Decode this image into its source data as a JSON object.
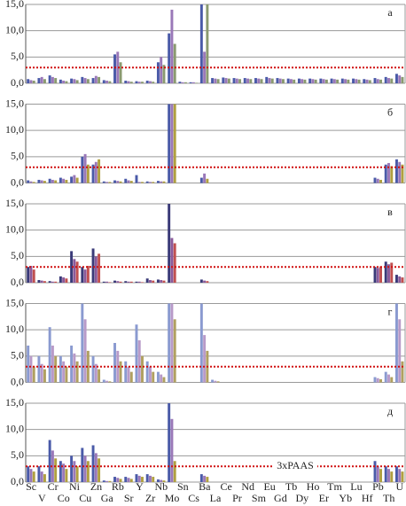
{
  "chart_data": [
    {
      "type": "bar",
      "panel_label": "а",
      "ylim": [
        0,
        15
      ],
      "yticks": [
        {
          "value": 0,
          "label": "0,0"
        },
        {
          "value": 5,
          "label": "5,0"
        },
        {
          "value": 10,
          "label": "10,0"
        },
        {
          "value": 15,
          "label": "15,0"
        }
      ],
      "threshold": 3,
      "threshold_color": "#d01010",
      "series": [
        {
          "color": "#4a5aa8",
          "values": [
            0.8,
            1.0,
            1.5,
            0.7,
            0.9,
            1.2,
            1.0,
            0.6,
            5.5,
            0.5,
            0.4,
            0.5,
            4.0,
            9.5,
            0.3,
            0.2,
            15.5,
            1.0,
            1.1,
            1.0,
            1.0,
            1.0,
            1.2,
            1.0,
            0.9,
            0.9,
            0.9,
            0.9,
            0.9,
            0.9,
            0.9,
            0.8,
            1.0,
            1.2,
            1.8
          ]
        },
        {
          "color": "#9a78b8",
          "values": [
            0.6,
            1.2,
            1.2,
            0.5,
            0.8,
            1.0,
            1.4,
            0.5,
            6.0,
            0.4,
            0.3,
            0.4,
            5.0,
            14.0,
            0.2,
            0.2,
            6.0,
            0.9,
            1.0,
            0.9,
            0.9,
            0.9,
            1.0,
            0.9,
            0.8,
            0.8,
            0.8,
            0.8,
            0.8,
            0.8,
            0.8,
            0.7,
            0.8,
            1.0,
            1.5
          ]
        },
        {
          "color": "#8a9a70",
          "values": [
            0.5,
            0.8,
            1.0,
            0.4,
            0.6,
            0.8,
            1.2,
            0.4,
            4.0,
            0.3,
            0.3,
            0.3,
            3.5,
            7.5,
            0.2,
            0.1,
            15.5,
            0.8,
            0.9,
            0.8,
            0.8,
            0.8,
            0.9,
            0.8,
            0.7,
            0.7,
            0.7,
            0.7,
            0.7,
            0.7,
            0.7,
            0.6,
            0.7,
            0.9,
            1.2
          ]
        }
      ]
    },
    {
      "type": "bar",
      "panel_label": "б",
      "ylim": [
        0,
        15
      ],
      "yticks": [
        {
          "value": 0,
          "label": "0,0"
        },
        {
          "value": 5,
          "label": "5,0"
        },
        {
          "value": 10,
          "label": "10,0"
        },
        {
          "value": 15,
          "label": "15,0"
        }
      ],
      "threshold": 3,
      "threshold_color": "#d01010",
      "series": [
        {
          "color": "#4a5aa8",
          "values": [
            0.5,
            0.6,
            0.8,
            1.0,
            1.2,
            5.0,
            3.5,
            0.3,
            0.5,
            0.8,
            1.5,
            0.3,
            0.4,
            16,
            0,
            0,
            1.0,
            0,
            0,
            0,
            0,
            0,
            0,
            0,
            0,
            0,
            0,
            0,
            0,
            0,
            0,
            0,
            1.0,
            3.5,
            4.5
          ]
        },
        {
          "color": "#9a78b8",
          "values": [
            0.3,
            0.5,
            0.6,
            0.8,
            1.5,
            5.5,
            4.0,
            0.2,
            0.4,
            0.5,
            0.2,
            0.2,
            0.3,
            16,
            0,
            0,
            1.8,
            0,
            0,
            0,
            0,
            0,
            0,
            0,
            0,
            0,
            0,
            0,
            0,
            0,
            0,
            0,
            0.8,
            3.8,
            4.0
          ]
        },
        {
          "color": "#b0a040",
          "values": [
            0.2,
            0.4,
            0.5,
            0.6,
            1.0,
            3.5,
            4.5,
            0.2,
            0.3,
            0.4,
            0.2,
            0.2,
            0.3,
            16,
            0,
            0,
            0.8,
            0,
            0,
            0,
            0,
            0,
            0,
            0,
            0,
            0,
            0,
            0,
            0,
            0,
            0,
            0,
            0.6,
            3.2,
            3.5
          ]
        }
      ]
    },
    {
      "type": "bar",
      "panel_label": "в",
      "ylim": [
        0,
        15
      ],
      "yticks": [
        {
          "value": 0,
          "label": "0,0"
        },
        {
          "value": 5,
          "label": "5,0"
        },
        {
          "value": 10,
          "label": "10,0"
        },
        {
          "value": 15,
          "label": "15,0"
        }
      ],
      "threshold": 3,
      "threshold_color": "#d01010",
      "series": [
        {
          "color": "#3a3a78",
          "values": [
            3.0,
            0.5,
            0.3,
            1.2,
            6.0,
            3.0,
            6.5,
            0.2,
            0.4,
            0.3,
            0.2,
            0.8,
            0.6,
            16,
            0,
            0,
            0.6,
            0,
            0,
            0,
            0,
            0,
            0,
            0,
            0,
            0,
            0,
            0,
            0,
            0,
            0,
            0,
            3.0,
            4.0,
            1.5
          ]
        },
        {
          "color": "#8a5a9a",
          "values": [
            3.2,
            0.4,
            0.2,
            1.0,
            4.5,
            2.5,
            5.0,
            0.2,
            0.3,
            0.2,
            0.2,
            0.5,
            0.5,
            8.5,
            0,
            0,
            0.4,
            0,
            0,
            0,
            0,
            0,
            0,
            0,
            0,
            0,
            0,
            0,
            0,
            0,
            0,
            0,
            2.8,
            3.5,
            1.2
          ]
        },
        {
          "color": "#c05050",
          "values": [
            2.5,
            0.3,
            0.2,
            0.8,
            4.0,
            3.2,
            5.5,
            0.1,
            0.2,
            0.2,
            0.1,
            0.4,
            0.4,
            7.5,
            0,
            0,
            0.3,
            0,
            0,
            0,
            0,
            0,
            0,
            0,
            0,
            0,
            0,
            0,
            0,
            0,
            0,
            0,
            3.1,
            3.8,
            1.0
          ]
        }
      ]
    },
    {
      "type": "bar",
      "panel_label": "г",
      "ylim": [
        0,
        15
      ],
      "yticks": [
        {
          "value": 0,
          "label": "0,0"
        },
        {
          "value": 5,
          "label": "5,0"
        },
        {
          "value": 10,
          "label": "10,0"
        },
        {
          "value": 15,
          "label": "15,0"
        }
      ],
      "threshold": 3,
      "threshold_color": "#d01010",
      "series": [
        {
          "color": "#8a9ad0",
          "values": [
            7.0,
            5.0,
            10.5,
            5.0,
            7.0,
            15.5,
            5.0,
            0.5,
            7.5,
            4.0,
            11.0,
            4.0,
            2.0,
            16,
            0,
            0,
            15.0,
            0.5,
            0,
            0,
            0,
            0,
            0,
            0,
            0,
            0,
            0,
            0,
            0,
            0,
            0,
            0,
            1.0,
            2.0,
            15.0
          ]
        },
        {
          "color": "#b89ac8",
          "values": [
            5.0,
            3.5,
            7.0,
            4.0,
            5.5,
            12.0,
            3.5,
            0.3,
            6.0,
            3.0,
            8.0,
            3.0,
            1.5,
            16,
            0,
            0,
            9.0,
            0.3,
            0,
            0,
            0,
            0,
            0,
            0,
            0,
            0,
            0,
            0,
            0,
            0,
            0,
            0,
            0.8,
            1.5,
            12.0
          ]
        },
        {
          "color": "#b0a060",
          "values": [
            3.0,
            2.5,
            5.0,
            3.0,
            4.0,
            6.0,
            2.5,
            0.2,
            4.0,
            2.0,
            5.0,
            2.0,
            1.0,
            12.0,
            0,
            0,
            6.0,
            0.2,
            0,
            0,
            0,
            0,
            0,
            0,
            0,
            0,
            0,
            0,
            0,
            0,
            0,
            0,
            0.6,
            1.0,
            4.0
          ]
        }
      ]
    },
    {
      "type": "bar",
      "panel_label": "д",
      "ylim": [
        0,
        15
      ],
      "yticks": [
        {
          "value": 0,
          "label": "0,0"
        },
        {
          "value": 5,
          "label": "5,0"
        },
        {
          "value": 10,
          "label": "10,0"
        },
        {
          "value": 15,
          "label": "15,0"
        }
      ],
      "threshold": 3,
      "threshold_color": "#d01010",
      "annotation": "3xPAAS",
      "categories": [
        "Sc",
        "V",
        "Cr",
        "Co",
        "Ni",
        "Cu",
        "Zn",
        "Ga",
        "Rb",
        "Sr",
        "Y",
        "Zr",
        "Nb",
        "Mo",
        "Sn",
        "Cs",
        "Ba",
        "La",
        "Ce",
        "Pr",
        "Nd",
        "Sm",
        "Eu",
        "Gd",
        "Tb",
        "Dy",
        "Ho",
        "Er",
        "Tm",
        "Yb",
        "Lu",
        "Hf",
        "Pb",
        "Th",
        "U"
      ],
      "series": [
        {
          "color": "#4a5aa8",
          "values": [
            3.0,
            3.0,
            8.0,
            4.0,
            5.0,
            6.5,
            7.0,
            0.3,
            1.0,
            1.0,
            1.5,
            1.5,
            0.5,
            15.5,
            0,
            0,
            1.5,
            0,
            0,
            0,
            0,
            0,
            0,
            0,
            0,
            0,
            0,
            0,
            0,
            0,
            0,
            0,
            4.0,
            3.0,
            3.0
          ]
        },
        {
          "color": "#9a78b8",
          "values": [
            2.5,
            2.0,
            6.0,
            3.5,
            4.0,
            5.0,
            5.5,
            0.2,
            0.8,
            0.8,
            1.2,
            1.2,
            0.4,
            12.0,
            0,
            0,
            1.2,
            0,
            0,
            0,
            0,
            0,
            0,
            0,
            0,
            0,
            0,
            0,
            0,
            0,
            0,
            0,
            3.0,
            2.5,
            2.5
          ]
        },
        {
          "color": "#b0a040",
          "values": [
            2.0,
            1.5,
            4.5,
            2.5,
            3.0,
            4.0,
            4.5,
            0.2,
            0.6,
            0.6,
            1.0,
            1.0,
            0.3,
            4.0,
            0,
            0,
            1.0,
            0,
            0,
            0,
            0,
            0,
            0,
            0,
            0,
            0,
            0,
            0,
            0,
            0,
            0,
            0,
            2.5,
            2.0,
            2.0
          ]
        }
      ]
    }
  ]
}
